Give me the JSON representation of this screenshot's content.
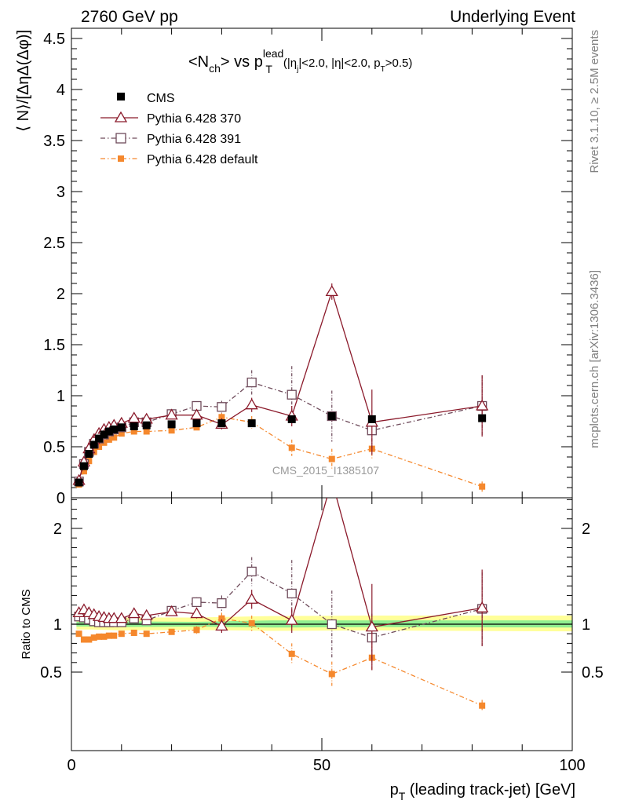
{
  "header": {
    "left": "2760 GeV pp",
    "right": "Underlying Event"
  },
  "side_labels": {
    "top": "Rivet 3.1.10, ≥ 2.5M events",
    "bottom": "mcplots.cern.ch [arXiv:1306.3436]"
  },
  "watermark": "CMS_2015_I1385107",
  "colors": {
    "cms": "#000000",
    "p370": "#8b1a2b",
    "p391": "#6e4a5a",
    "pdef": "#f5882d",
    "band_inner": "#90ee90",
    "band_outer": "#ffff99"
  },
  "chart_data": [
    {
      "type": "line",
      "panel": "main",
      "title": "<Nch> vs pT^lead (|ηj|<2.0, |η|<2.0, pT>0.5)",
      "title_parts": {
        "n": "<N",
        "n_sub": "ch",
        "n_close": "> vs p",
        "p_sup": "lead",
        "p_sub": "T",
        "cond_a": "(|η",
        "cond_a_sub": "j",
        "cond_b": "|<2.0, |η|<2.0, p",
        "cond_b_sub": "T",
        "cond_c": ">0.5)"
      },
      "ylabel": "⟨ N⟩/[ΔηΔ(Δφ)]",
      "xlim": [
        0,
        100
      ],
      "ylim": [
        0,
        4.6
      ],
      "y_ticks": [
        "0",
        "0.5",
        "1",
        "1.5",
        "2",
        "2.5",
        "3",
        "3.5",
        "4",
        "4.5"
      ],
      "legend_position": "top-left",
      "series": [
        {
          "name": "CMS",
          "x": [
            1.5,
            2.5,
            3.5,
            4.5,
            5.5,
            6.5,
            7.5,
            8.5,
            10,
            12.5,
            15,
            20,
            25,
            30,
            36,
            44,
            52,
            60,
            82
          ],
          "y": [
            0.15,
            0.31,
            0.43,
            0.52,
            0.58,
            0.62,
            0.65,
            0.67,
            0.69,
            0.7,
            0.71,
            0.72,
            0.73,
            0.73,
            0.73,
            0.77,
            0.8,
            0.77,
            0.78
          ]
        },
        {
          "name": "Pythia 6.428 370",
          "x": [
            1.5,
            2.5,
            3.5,
            4.5,
            5.5,
            6.5,
            7.5,
            8.5,
            10,
            12.5,
            15,
            20,
            25,
            30,
            36,
            44,
            52,
            60,
            82
          ],
          "y": [
            0.17,
            0.35,
            0.48,
            0.57,
            0.63,
            0.67,
            0.69,
            0.71,
            0.73,
            0.78,
            0.77,
            0.81,
            0.81,
            0.72,
            0.91,
            0.8,
            2.02,
            0.74,
            0.9
          ],
          "err": [
            0.01,
            0.01,
            0.01,
            0.01,
            0.01,
            0.01,
            0.01,
            0.01,
            0.01,
            0.02,
            0.02,
            0.03,
            0.04,
            0.05,
            0.07,
            0.1,
            0.08,
            0.32,
            0.3
          ]
        },
        {
          "name": "Pythia 6.428 391",
          "x": [
            1.5,
            2.5,
            3.5,
            4.5,
            5.5,
            6.5,
            7.5,
            8.5,
            10,
            12.5,
            15,
            20,
            25,
            30,
            36,
            44,
            52,
            60,
            82
          ],
          "y": [
            0.16,
            0.33,
            0.45,
            0.53,
            0.58,
            0.62,
            0.65,
            0.67,
            0.69,
            0.74,
            0.74,
            0.82,
            0.9,
            0.89,
            1.13,
            1.01,
            0.8,
            0.66,
            0.9
          ],
          "err": [
            0.01,
            0.01,
            0.01,
            0.01,
            0.01,
            0.01,
            0.01,
            0.01,
            0.01,
            0.02,
            0.02,
            0.03,
            0.04,
            0.06,
            0.12,
            0.28,
            0.25,
            0.2,
            0.3
          ]
        },
        {
          "name": "Pythia 6.428 default",
          "x": [
            1.5,
            2.5,
            3.5,
            4.5,
            5.5,
            6.5,
            7.5,
            8.5,
            10,
            12.5,
            15,
            20,
            25,
            30,
            36,
            44,
            52,
            60,
            82
          ],
          "y": [
            0.13,
            0.26,
            0.36,
            0.45,
            0.5,
            0.54,
            0.57,
            0.59,
            0.63,
            0.65,
            0.65,
            0.66,
            0.69,
            0.79,
            0.74,
            0.49,
            0.38,
            0.48,
            0.11
          ],
          "err": [
            0.01,
            0.01,
            0.01,
            0.01,
            0.01,
            0.01,
            0.01,
            0.01,
            0.01,
            0.01,
            0.02,
            0.02,
            0.03,
            0.04,
            0.06,
            0.08,
            0.1,
            0.1,
            0.05
          ]
        }
      ]
    },
    {
      "type": "line",
      "panel": "ratio",
      "ylabel": "Ratio to CMS",
      "xlabel": "pT (leading track-jet) [GeV]",
      "xlabel_parts": {
        "p": "p",
        "p_sub": "T",
        "rest": " (leading track-jet) [GeV]"
      },
      "xlim": [
        0,
        100
      ],
      "ylim": [
        0.42,
        2.4
      ],
      "x_ticks": [
        "0",
        "50",
        "100"
      ],
      "y_ticks": [
        "0.5",
        "1",
        "2"
      ],
      "band_inner": {
        "x": [
          1,
          4,
          10,
          25,
          40,
          60,
          100
        ],
        "lo": [
          0.975,
          0.975,
          0.97,
          0.975,
          0.965,
          0.97,
          0.965
        ],
        "hi": [
          1.025,
          1.025,
          1.03,
          1.025,
          1.04,
          1.04,
          1.04
        ]
      },
      "band_outer": {
        "x": [
          1,
          4,
          10,
          25,
          40,
          60,
          100
        ],
        "lo": [
          0.945,
          0.945,
          0.935,
          0.94,
          0.93,
          0.935,
          0.925
        ],
        "hi": [
          1.06,
          1.065,
          1.07,
          1.07,
          1.085,
          1.09,
          1.09
        ]
      },
      "series": [
        {
          "name": "Pythia 6.428 370",
          "x": [
            1.5,
            2.5,
            3.5,
            4.5,
            5.5,
            6.5,
            7.5,
            8.5,
            10,
            12.5,
            15,
            20,
            25,
            30,
            36,
            44,
            52,
            60,
            82
          ],
          "y": [
            1.12,
            1.15,
            1.12,
            1.1,
            1.08,
            1.07,
            1.06,
            1.06,
            1.06,
            1.11,
            1.09,
            1.13,
            1.11,
            0.98,
            1.26,
            1.04,
            2.5,
            0.97,
            1.17
          ],
          "err": [
            0.02,
            0.02,
            0.02,
            0.02,
            0.02,
            0.02,
            0.02,
            0.02,
            0.02,
            0.03,
            0.03,
            0.04,
            0.05,
            0.07,
            0.1,
            0.13,
            0.15,
            0.45,
            0.4
          ]
        },
        {
          "name": "Pythia 6.428 391",
          "x": [
            1.5,
            2.5,
            3.5,
            4.5,
            5.5,
            6.5,
            7.5,
            8.5,
            10,
            12.5,
            15,
            20,
            25,
            30,
            36,
            44,
            52,
            60,
            82
          ],
          "y": [
            1.08,
            1.07,
            1.05,
            1.03,
            1.02,
            1.02,
            1.02,
            1.02,
            1.02,
            1.06,
            1.04,
            1.14,
            1.23,
            1.22,
            1.55,
            1.32,
            1.0,
            0.86,
            1.16
          ],
          "err": [
            0.02,
            0.02,
            0.02,
            0.02,
            0.02,
            0.02,
            0.02,
            0.02,
            0.02,
            0.03,
            0.03,
            0.04,
            0.05,
            0.08,
            0.15,
            0.35,
            0.35,
            0.25,
            0.38
          ]
        },
        {
          "name": "Pythia 6.428 default",
          "x": [
            1.5,
            2.5,
            3.5,
            4.5,
            5.5,
            6.5,
            7.5,
            8.5,
            10,
            12.5,
            15,
            20,
            25,
            30,
            36,
            44,
            52,
            60,
            82
          ],
          "y": [
            0.9,
            0.84,
            0.84,
            0.86,
            0.87,
            0.87,
            0.88,
            0.88,
            0.9,
            0.91,
            0.9,
            0.92,
            0.94,
            1.06,
            1.01,
            0.69,
            0.48,
            0.65,
            0.15
          ],
          "err": [
            0.01,
            0.01,
            0.01,
            0.01,
            0.01,
            0.01,
            0.01,
            0.01,
            0.01,
            0.02,
            0.02,
            0.03,
            0.04,
            0.06,
            0.08,
            0.11,
            0.13,
            0.13,
            0.06
          ]
        }
      ]
    }
  ]
}
